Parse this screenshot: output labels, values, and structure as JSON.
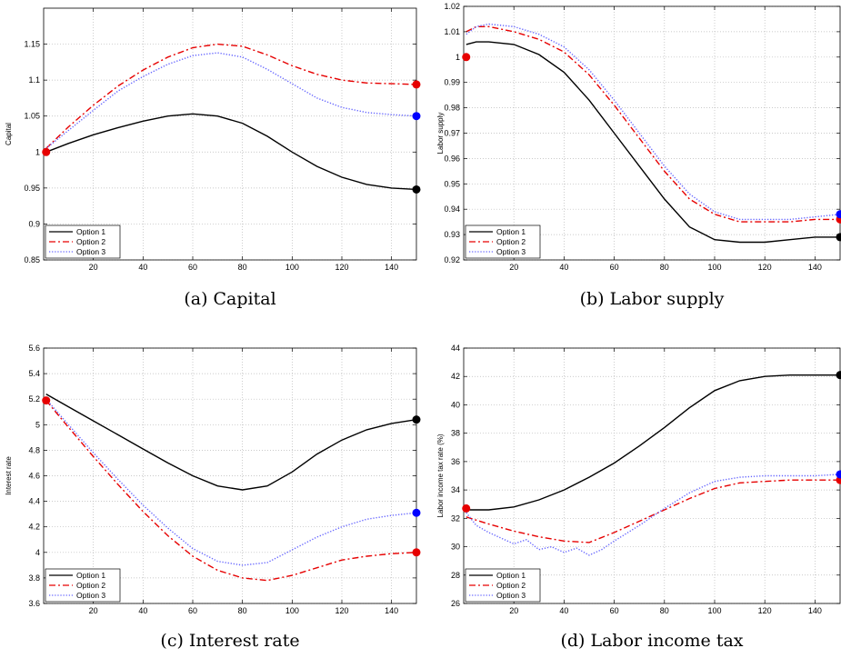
{
  "chart_data": [
    {
      "type": "line",
      "caption": "(a) Capital",
      "ylabel": "Capital",
      "xlim": [
        0,
        150
      ],
      "ylim": [
        0.85,
        1.2
      ],
      "xticks": [
        20,
        40,
        60,
        80,
        100,
        120,
        140
      ],
      "yticks": [
        0.85,
        0.9,
        0.95,
        1,
        1.05,
        1.1,
        1.15
      ],
      "ytick_labels": [
        "0.85",
        "0.9",
        "0.95",
        "1",
        "1.05",
        "1.1",
        "1.15"
      ],
      "grid": true,
      "legend": "bottom-left",
      "series": [
        {
          "name": "Option 1",
          "color": "#000000",
          "dash": "solid",
          "x": [
            1,
            10,
            20,
            30,
            40,
            50,
            60,
            70,
            80,
            90,
            100,
            110,
            120,
            130,
            140,
            150
          ],
          "y": [
            1.0,
            1.012,
            1.024,
            1.034,
            1.043,
            1.05,
            1.053,
            1.05,
            1.04,
            1.022,
            1.0,
            0.98,
            0.965,
            0.955,
            0.95,
            0.948
          ],
          "end_marker": "#000000"
        },
        {
          "name": "Option 2",
          "color": "#e60000",
          "dash": "dashdot",
          "x": [
            1,
            10,
            20,
            30,
            40,
            50,
            60,
            70,
            80,
            90,
            100,
            110,
            120,
            130,
            140,
            150
          ],
          "y": [
            1.005,
            1.035,
            1.065,
            1.092,
            1.114,
            1.132,
            1.145,
            1.15,
            1.147,
            1.135,
            1.12,
            1.108,
            1.1,
            1.096,
            1.095,
            1.094
          ],
          "end_marker": "#e60000"
        },
        {
          "name": "Option 3",
          "color": "#6666ff",
          "dash": "dotted",
          "x": [
            1,
            10,
            20,
            30,
            40,
            50,
            60,
            70,
            80,
            90,
            100,
            110,
            120,
            130,
            140,
            150
          ],
          "y": [
            1.005,
            1.03,
            1.058,
            1.085,
            1.105,
            1.122,
            1.134,
            1.138,
            1.132,
            1.115,
            1.095,
            1.075,
            1.062,
            1.055,
            1.052,
            1.05
          ],
          "end_marker": "#0000ff"
        }
      ],
      "start_marker": {
        "x": 1,
        "y": 1.0,
        "color": "#e60000"
      }
    },
    {
      "type": "line",
      "caption": "(b) Labor supply",
      "ylabel": "Labor supply",
      "xlim": [
        0,
        150
      ],
      "ylim": [
        0.92,
        1.02
      ],
      "xticks": [
        20,
        40,
        60,
        80,
        100,
        120,
        140
      ],
      "yticks": [
        0.92,
        0.93,
        0.94,
        0.95,
        0.96,
        0.97,
        0.98,
        0.99,
        1,
        1.01,
        1.02
      ],
      "ytick_labels": [
        "0.92",
        "0.93",
        "0.94",
        "0.95",
        "0.96",
        "0.97",
        "0.98",
        "0.99",
        "1",
        "1.01",
        "1.02"
      ],
      "grid": true,
      "legend": "bottom-left",
      "series": [
        {
          "name": "Option 1",
          "color": "#000000",
          "dash": "solid",
          "x": [
            1,
            5,
            10,
            20,
            30,
            40,
            50,
            60,
            70,
            80,
            90,
            100,
            110,
            120,
            130,
            140,
            150
          ],
          "y": [
            1.005,
            1.006,
            1.006,
            1.005,
            1.001,
            0.994,
            0.983,
            0.97,
            0.957,
            0.944,
            0.933,
            0.928,
            0.927,
            0.927,
            0.928,
            0.929,
            0.929
          ],
          "end_marker": "#000000"
        },
        {
          "name": "Option 2",
          "color": "#e60000",
          "dash": "dashdot",
          "x": [
            1,
            5,
            10,
            20,
            30,
            40,
            50,
            60,
            70,
            80,
            90,
            100,
            110,
            120,
            130,
            140,
            150
          ],
          "y": [
            1.01,
            1.012,
            1.012,
            1.01,
            1.007,
            1.002,
            0.993,
            0.981,
            0.968,
            0.955,
            0.944,
            0.938,
            0.935,
            0.935,
            0.935,
            0.936,
            0.936
          ],
          "end_marker": "#e60000"
        },
        {
          "name": "Option 3",
          "color": "#6666ff",
          "dash": "dotted",
          "x": [
            1,
            5,
            10,
            20,
            30,
            40,
            50,
            60,
            70,
            80,
            90,
            100,
            110,
            120,
            130,
            140,
            150
          ],
          "y": [
            1.009,
            1.012,
            1.013,
            1.012,
            1.009,
            1.004,
            0.995,
            0.983,
            0.97,
            0.957,
            0.946,
            0.939,
            0.936,
            0.936,
            0.936,
            0.937,
            0.938
          ],
          "end_marker": "#0000ff"
        }
      ],
      "start_marker": {
        "x": 1,
        "y": 1.0,
        "color": "#e60000"
      }
    },
    {
      "type": "line",
      "caption": "(c) Interest rate",
      "ylabel": "Interest rate",
      "xlim": [
        0,
        150
      ],
      "ylim": [
        3.6,
        5.6
      ],
      "xticks": [
        20,
        40,
        60,
        80,
        100,
        120,
        140
      ],
      "yticks": [
        3.6,
        3.8,
        4,
        4.2,
        4.4,
        4.6,
        4.8,
        5,
        5.2,
        5.4,
        5.6
      ],
      "ytick_labels": [
        "3.6",
        "3.8",
        "4",
        "4.2",
        "4.4",
        "4.6",
        "4.8",
        "5",
        "5.2",
        "5.4",
        "5.6"
      ],
      "grid": true,
      "legend": "bottom-left",
      "series": [
        {
          "name": "Option 1",
          "color": "#000000",
          "dash": "solid",
          "x": [
            1,
            10,
            20,
            30,
            40,
            50,
            60,
            70,
            80,
            90,
            100,
            110,
            120,
            130,
            140,
            150
          ],
          "y": [
            5.24,
            5.14,
            5.03,
            4.92,
            4.81,
            4.7,
            4.6,
            4.52,
            4.49,
            4.52,
            4.63,
            4.77,
            4.88,
            4.96,
            5.01,
            5.04
          ],
          "end_marker": "#000000"
        },
        {
          "name": "Option 2",
          "color": "#e60000",
          "dash": "dashdot",
          "x": [
            1,
            10,
            20,
            30,
            40,
            50,
            60,
            70,
            80,
            90,
            100,
            110,
            120,
            130,
            140,
            150
          ],
          "y": [
            5.19,
            4.98,
            4.75,
            4.53,
            4.32,
            4.13,
            3.97,
            3.86,
            3.8,
            3.78,
            3.82,
            3.88,
            3.94,
            3.97,
            3.99,
            4.0
          ],
          "end_marker": "#e60000"
        },
        {
          "name": "Option 3",
          "color": "#6666ff",
          "dash": "dotted",
          "x": [
            1,
            10,
            20,
            30,
            40,
            50,
            60,
            70,
            80,
            90,
            100,
            110,
            120,
            130,
            140,
            150
          ],
          "y": [
            5.2,
            5.0,
            4.78,
            4.57,
            4.37,
            4.19,
            4.03,
            3.93,
            3.9,
            3.92,
            4.02,
            4.12,
            4.2,
            4.26,
            4.29,
            4.31
          ],
          "end_marker": "#0000ff"
        }
      ],
      "start_marker": {
        "x": 1,
        "y": 5.19,
        "color": "#e60000"
      }
    },
    {
      "type": "line",
      "caption": "(d) Labor income tax",
      "ylabel": "Labor income tax rate (%)",
      "xlim": [
        0,
        150
      ],
      "ylim": [
        26,
        44
      ],
      "xticks": [
        20,
        40,
        60,
        80,
        100,
        120,
        140
      ],
      "yticks": [
        26,
        28,
        30,
        32,
        34,
        36,
        38,
        40,
        42,
        44
      ],
      "ytick_labels": [
        "26",
        "28",
        "30",
        "32",
        "34",
        "36",
        "38",
        "40",
        "42",
        "44"
      ],
      "grid": true,
      "legend": "bottom-left",
      "series": [
        {
          "name": "Option 1",
          "color": "#000000",
          "dash": "solid",
          "x": [
            1,
            10,
            20,
            30,
            40,
            50,
            60,
            70,
            80,
            90,
            100,
            110,
            120,
            130,
            140,
            150
          ],
          "y": [
            32.6,
            32.6,
            32.8,
            33.3,
            34.0,
            34.9,
            35.9,
            37.1,
            38.4,
            39.8,
            41.0,
            41.7,
            42.0,
            42.1,
            42.1,
            42.1
          ],
          "end_marker": "#000000"
        },
        {
          "name": "Option 2",
          "color": "#e60000",
          "dash": "dashdot",
          "x": [
            1,
            10,
            20,
            30,
            40,
            50,
            60,
            70,
            80,
            90,
            100,
            110,
            120,
            130,
            140,
            150
          ],
          "y": [
            32.1,
            31.6,
            31.1,
            30.7,
            30.4,
            30.3,
            31.0,
            31.8,
            32.6,
            33.4,
            34.1,
            34.5,
            34.6,
            34.7,
            34.7,
            34.7
          ],
          "end_marker": "#e60000"
        },
        {
          "name": "Option 3",
          "color": "#6666ff",
          "dash": "dotted",
          "x": [
            1,
            5,
            10,
            15,
            20,
            25,
            30,
            35,
            40,
            45,
            50,
            55,
            60,
            70,
            80,
            90,
            100,
            110,
            120,
            130,
            140,
            150
          ],
          "y": [
            32.4,
            31.5,
            31.0,
            30.6,
            30.2,
            30.5,
            29.8,
            30.0,
            29.6,
            29.9,
            29.4,
            29.8,
            30.4,
            31.5,
            32.7,
            33.8,
            34.6,
            34.9,
            35.0,
            35.0,
            35.0,
            35.1
          ],
          "end_marker": "#0000ff"
        }
      ],
      "start_marker": {
        "x": 1,
        "y": 32.7,
        "color": "#e60000"
      }
    }
  ]
}
